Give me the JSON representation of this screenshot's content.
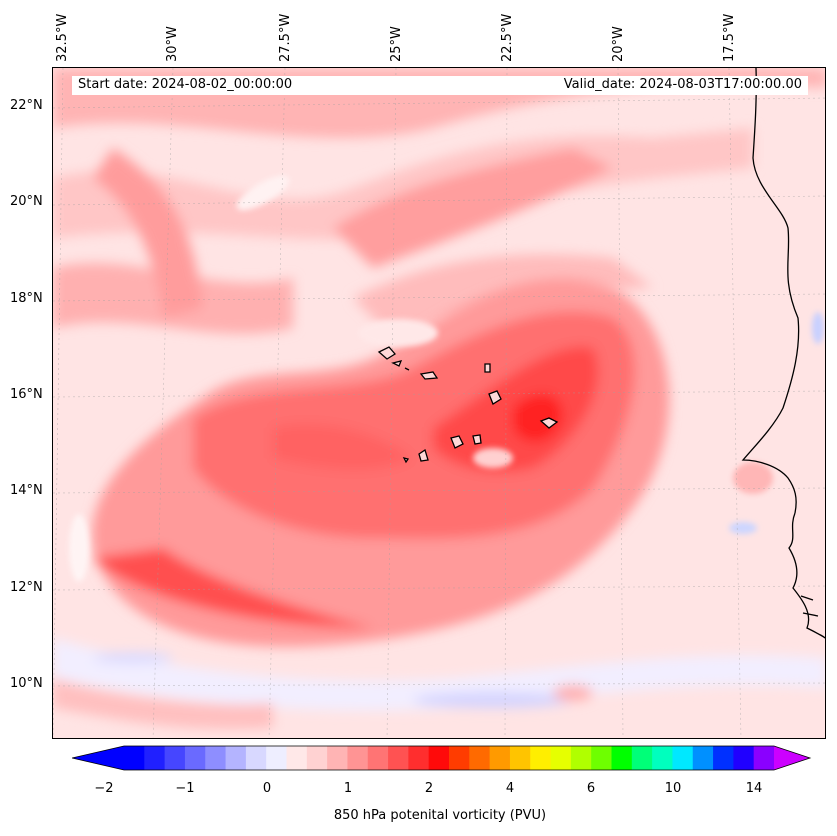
{
  "map": {
    "start_date": "Start date: 2024-08-02_00:00:00",
    "valid_date": "Valid_date: 2024-08-03T17:00:00.00",
    "lon_labels": [
      "32.5°W",
      "30°W",
      "27.5°W",
      "25°W",
      "22.5°W",
      "20°W",
      "17.5°W"
    ],
    "lat_labels": [
      "22°N",
      "20°N",
      "18°N",
      "16°N",
      "14°N",
      "12°N",
      "10°N"
    ],
    "field": "850 hPa potential vorticity",
    "region": "Cabo Verde / West Africa coast"
  },
  "colorbar": {
    "title": "850 hPa potenital vorticity (PVU)",
    "ticks": [
      "−2",
      "−1",
      "0",
      "1",
      "2",
      "4",
      "6",
      "10",
      "14"
    ],
    "colors": [
      "#0000ff",
      "#2020ff",
      "#4646ff",
      "#6a6aff",
      "#8e8eff",
      "#b4b4ff",
      "#d8d8ff",
      "#eeeeff",
      "#ffe8e8",
      "#ffd2d2",
      "#ffb4b4",
      "#ff9494",
      "#ff7474",
      "#ff5252",
      "#ff2e2e",
      "#ff0a0a",
      "#ff3c00",
      "#ff6a00",
      "#ff9a00",
      "#ffc400",
      "#ffee00",
      "#e6ff00",
      "#b0ff00",
      "#6eff00",
      "#00ff00",
      "#00ff78",
      "#00ffbe",
      "#00e8ff",
      "#0090ff",
      "#0030ff",
      "#2000ff",
      "#8a00ff"
    ],
    "under_color": "#0000ff",
    "over_color": "#cc00ff"
  }
}
